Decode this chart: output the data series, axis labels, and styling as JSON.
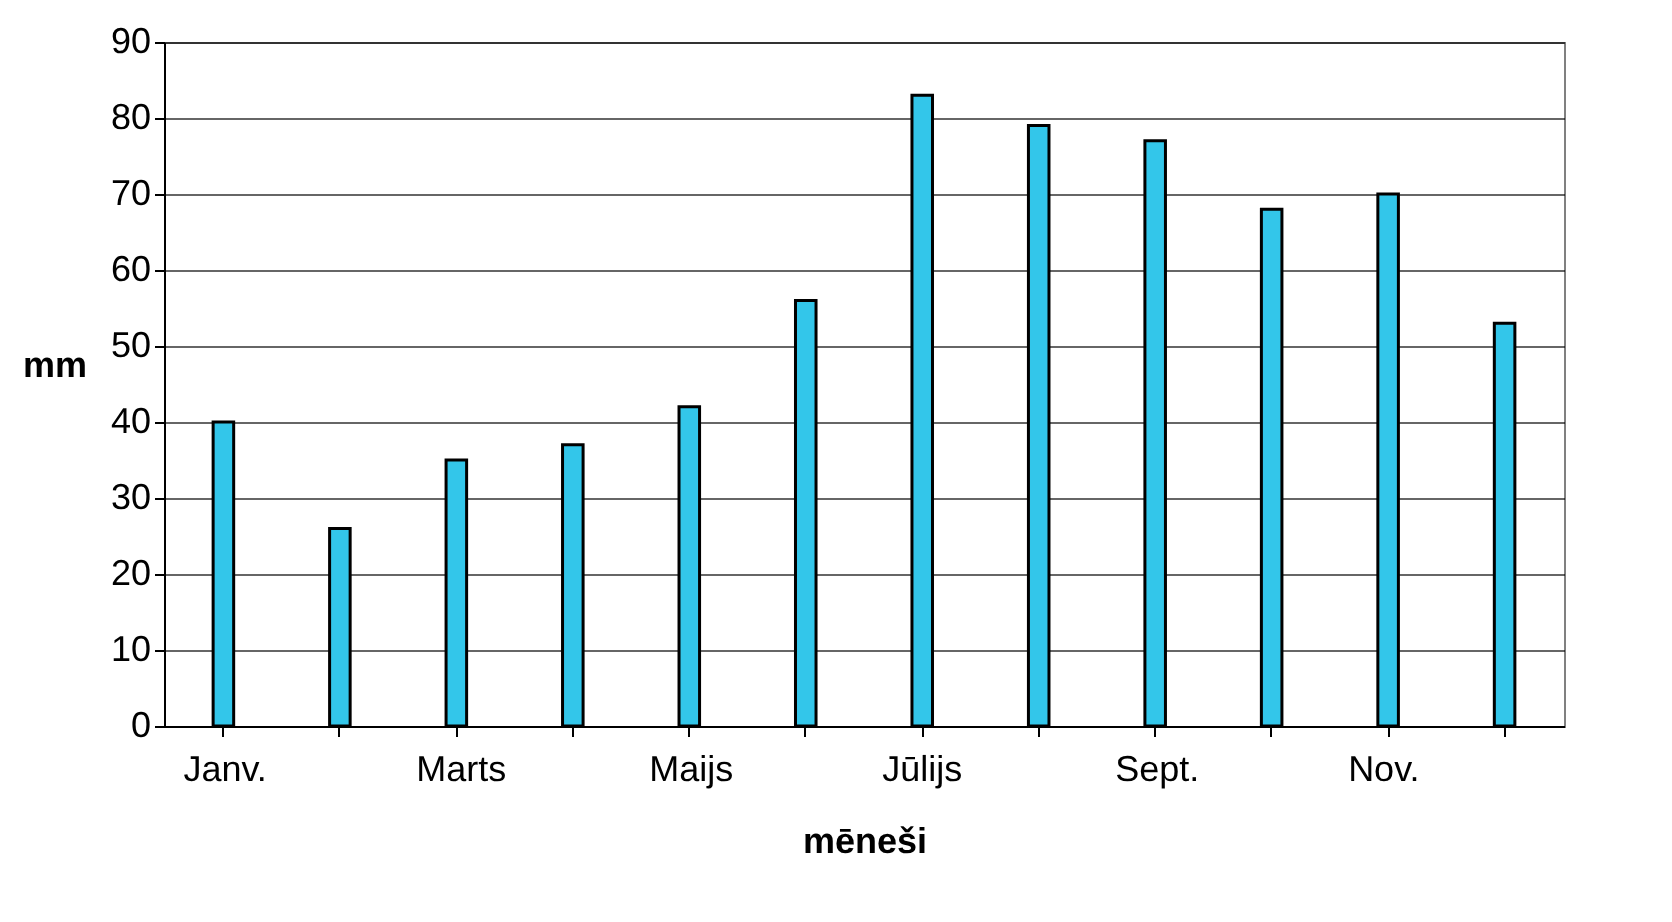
{
  "chart_data": {
    "type": "bar",
    "xlabel": "mēneši",
    "ylabel": "mm",
    "categories": [
      "Janv.",
      null,
      "Marts",
      null,
      "Maijs",
      null,
      "Jūlijs",
      null,
      "Sept.",
      null,
      "Nov.",
      null
    ],
    "values": [
      40,
      26,
      35,
      37,
      42,
      56,
      83,
      79,
      77,
      68,
      70,
      53
    ],
    "color": "#33c6ea",
    "ylim": [
      0,
      90
    ],
    "yticks": [
      0,
      10,
      20,
      30,
      40,
      50,
      60,
      70,
      80,
      90
    ],
    "grid": "y"
  }
}
